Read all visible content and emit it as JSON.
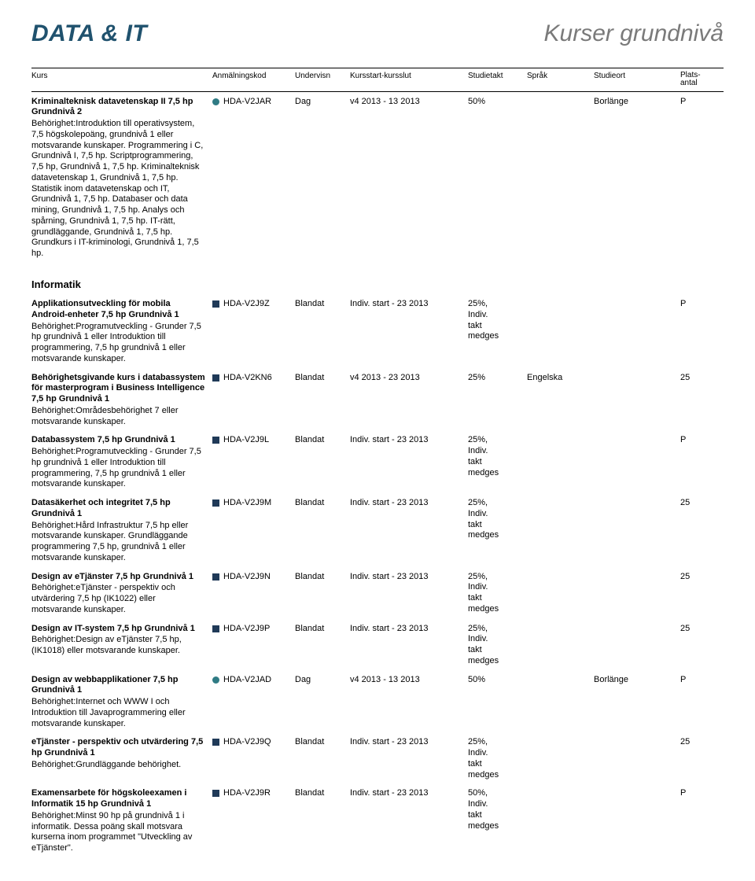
{
  "header": {
    "category": "DATA & IT",
    "subtitle": "Kurser grundnivå"
  },
  "columns": {
    "course": "Kurs",
    "code": "Anmälningskod",
    "under": "Undervisn",
    "period": "Kursstart-kursslut",
    "takt": "Studietakt",
    "lang": "Språk",
    "ort": "Studieort",
    "plats": "Plats-\nantal"
  },
  "colors": {
    "dot_teal": "#2f7b84",
    "square_navy": "#203a58"
  },
  "top_course": {
    "title": "Kriminalteknisk datavetenskap II 7,5 hp Grundnivå 2",
    "desc": "Behörighet:Introduktion till operativsystem, 7,5 högskolepoäng, grundnivå 1 eller motsvarande kunskaper. Programmering i C, Grundnivå I, 7,5 hp. Scriptprogrammering, 7,5 hp, Grundnivå 1, 7,5 hp. Kriminalteknisk datavetenskap 1, Grundnivå 1, 7,5 hp. Statistik inom datavetenskap och IT, Grundnivå 1, 7,5 hp. Databaser och data mining, Grundnivå 1, 7,5 hp. Analys och spårning, Grundnivå 1, 7,5 hp. IT-rätt, grundläggande, Grundnivå 1, 7,5 hp. Grundkurs i IT-kriminologi, Grundnivå 1, 7,5 hp.",
    "marker": "dot",
    "code": "HDA-V2JAR",
    "under": "Dag",
    "period": "v4 2013 - 13 2013",
    "takt": "50%",
    "lang": "",
    "ort": "Borlänge",
    "plats": "P"
  },
  "section2_heading": "Informatik",
  "courses": [
    {
      "title": "Applikationsutveckling för mobila Android-enheter 7,5 hp Grundnivå 1",
      "desc": "Behörighet:Programutveckling - Grunder 7,5 hp grundnivå 1 eller Introduktion till programmering, 7,5 hp grundnivå 1 eller motsvarande kunskaper.",
      "marker": "square",
      "code": "HDA-V2J9Z",
      "under": "Blandat",
      "period": "Indiv. start - 23 2013",
      "takt": "25%,\nIndiv.\ntakt\nmedges",
      "lang": "",
      "ort": "",
      "plats": "P"
    },
    {
      "title": "Behörighetsgivande kurs i databassystem för masterprogram i Business Intelligence 7,5 hp Grundnivå 1",
      "desc": "Behörighet:Områdesbehörighet 7 eller motsvarande kunskaper.",
      "marker": "square",
      "code": "HDA-V2KN6",
      "under": "Blandat",
      "period": "v4 2013 - 23 2013",
      "takt": "25%",
      "lang": "Engelska",
      "ort": "",
      "plats": "25"
    },
    {
      "title": "Databassystem 7,5 hp Grundnivå 1",
      "desc": "Behörighet:Programutveckling - Grunder 7,5 hp grundnivå 1 eller Introduktion till programmering, 7,5 hp grundnivå 1 eller motsvarande kunskaper.",
      "marker": "square",
      "code": "HDA-V2J9L",
      "under": "Blandat",
      "period": "Indiv. start - 23 2013",
      "takt": "25%,\nIndiv.\ntakt\nmedges",
      "lang": "",
      "ort": "",
      "plats": "P"
    },
    {
      "title": "Datasäkerhet och integritet 7,5 hp Grundnivå 1",
      "desc": "Behörighet:Hård Infrastruktur 7,5 hp eller motsvarande kunskaper. Grundläggande programmering 7,5 hp, grundnivå 1 eller motsvarande kunskaper.",
      "marker": "square",
      "code": "HDA-V2J9M",
      "under": "Blandat",
      "period": "Indiv. start - 23 2013",
      "takt": "25%,\nIndiv.\ntakt\nmedges",
      "lang": "",
      "ort": "",
      "plats": "25"
    },
    {
      "title": "Design av eTjänster 7,5 hp Grundnivå 1",
      "desc": "Behörighet:eTjänster - perspektiv och utvärdering 7,5 hp (IK1022) eller motsvarande kunskaper.",
      "marker": "square",
      "code": "HDA-V2J9N",
      "under": "Blandat",
      "period": "Indiv. start - 23 2013",
      "takt": "25%,\nIndiv.\ntakt\nmedges",
      "lang": "",
      "ort": "",
      "plats": "25"
    },
    {
      "title": "Design av IT-system 7,5 hp Grundnivå 1",
      "desc": "Behörighet:Design av eTjänster 7,5 hp, (IK1018) eller motsvarande kunskaper.",
      "marker": "square",
      "code": "HDA-V2J9P",
      "under": "Blandat",
      "period": "Indiv. start - 23 2013",
      "takt": "25%,\nIndiv.\ntakt\nmedges",
      "lang": "",
      "ort": "",
      "plats": "25"
    },
    {
      "title": "Design av webbapplikationer 7,5 hp Grundnivå 1",
      "desc": "Behörighet:Internet och WWW I och Introduktion till Javaprogrammering eller motsvarande kunskaper.",
      "marker": "dot",
      "code": "HDA-V2JAD",
      "under": "Dag",
      "period": "v4 2013 - 13 2013",
      "takt": "50%",
      "lang": "",
      "ort": "Borlänge",
      "plats": "P"
    },
    {
      "title": "eTjänster - perspektiv och utvärdering 7,5 hp Grundnivå 1",
      "desc": "Behörighet:Grundläggande behörighet.",
      "marker": "square",
      "code": "HDA-V2J9Q",
      "under": "Blandat",
      "period": "Indiv. start - 23 2013",
      "takt": "25%,\nIndiv.\ntakt\nmedges",
      "lang": "",
      "ort": "",
      "plats": "25"
    },
    {
      "title": "Examensarbete för högskoleexamen i Informatik 15 hp Grundnivå 1",
      "desc": "Behörighet:Minst 90 hp på grundnivå 1 i informatik. Dessa poäng skall motsvara kurserna inom programmet \"Utveckling av eTjänster\".",
      "marker": "square",
      "code": "HDA-V2J9R",
      "under": "Blandat",
      "period": "Indiv. start - 23 2013",
      "takt": "50%,\nIndiv.\ntakt\nmedges",
      "lang": "",
      "ort": "",
      "plats": "P"
    }
  ]
}
